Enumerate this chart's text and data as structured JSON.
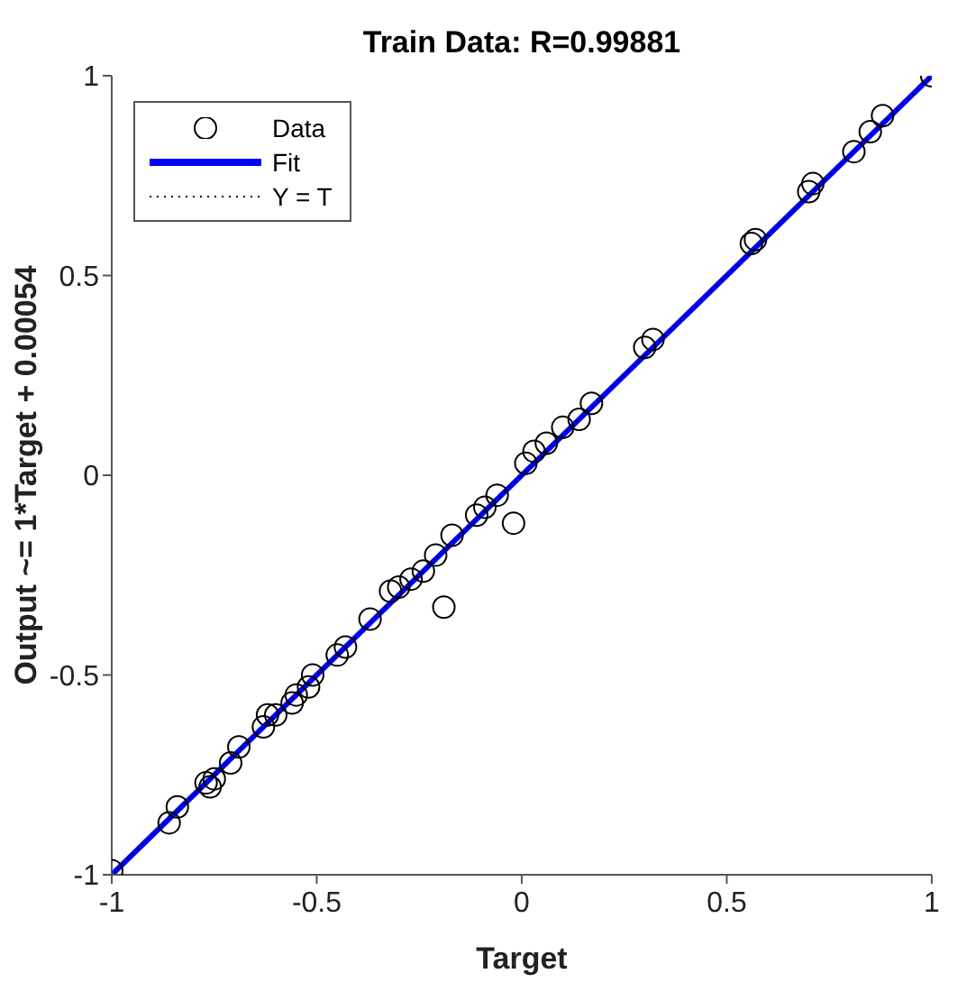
{
  "chart_data": {
    "type": "scatter",
    "title": "Train Data: R=0.99881",
    "xlabel": "Target",
    "ylabel": "Output ~= 1*Target + 0.00054",
    "xlim": [
      -1,
      1
    ],
    "ylim": [
      -1,
      1
    ],
    "xticks": [
      -1,
      -0.5,
      0,
      0.5,
      1
    ],
    "yticks": [
      -1,
      -0.5,
      0,
      0.5,
      1
    ],
    "legend": "top left",
    "series": [
      {
        "name": "Data",
        "color": "#000000",
        "marker": "circle",
        "x": [
          -1,
          -0.86,
          -0.84,
          -0.77,
          -0.76,
          -0.75,
          -0.71,
          -0.69,
          -0.63,
          -0.62,
          -0.6,
          -0.56,
          -0.55,
          -0.52,
          -0.51,
          -0.45,
          -0.43,
          -0.37,
          -0.32,
          -0.3,
          -0.27,
          -0.24,
          -0.21,
          -0.19,
          -0.17,
          -0.11,
          -0.09,
          -0.06,
          -0.02,
          0.01,
          0.03,
          0.06,
          0.1,
          0.14,
          0.17,
          0.3,
          0.32,
          0.56,
          0.57,
          0.7,
          0.71,
          0.81,
          0.85,
          0.88,
          1
        ],
        "values": [
          -0.99,
          -0.87,
          -0.83,
          -0.77,
          -0.78,
          -0.76,
          -0.72,
          -0.68,
          -0.63,
          -0.6,
          -0.6,
          -0.57,
          -0.55,
          -0.53,
          -0.5,
          -0.45,
          -0.43,
          -0.36,
          -0.29,
          -0.28,
          -0.26,
          -0.24,
          -0.2,
          -0.33,
          -0.15,
          -0.1,
          -0.08,
          -0.05,
          -0.12,
          0.03,
          0.06,
          0.08,
          0.12,
          0.14,
          0.18,
          0.32,
          0.34,
          0.58,
          0.59,
          0.71,
          0.73,
          0.81,
          0.86,
          0.9,
          1
        ]
      },
      {
        "name": "Fit",
        "type": "line",
        "color": "#0000ff",
        "line_style": "solid",
        "x": [
          -1,
          1
        ],
        "values": [
          -1,
          1
        ]
      },
      {
        "name": "Y = T",
        "type": "line",
        "color": "#000000",
        "line_style": "dotted",
        "x": [
          -1,
          1
        ],
        "values": [
          -1,
          1
        ]
      }
    ]
  }
}
